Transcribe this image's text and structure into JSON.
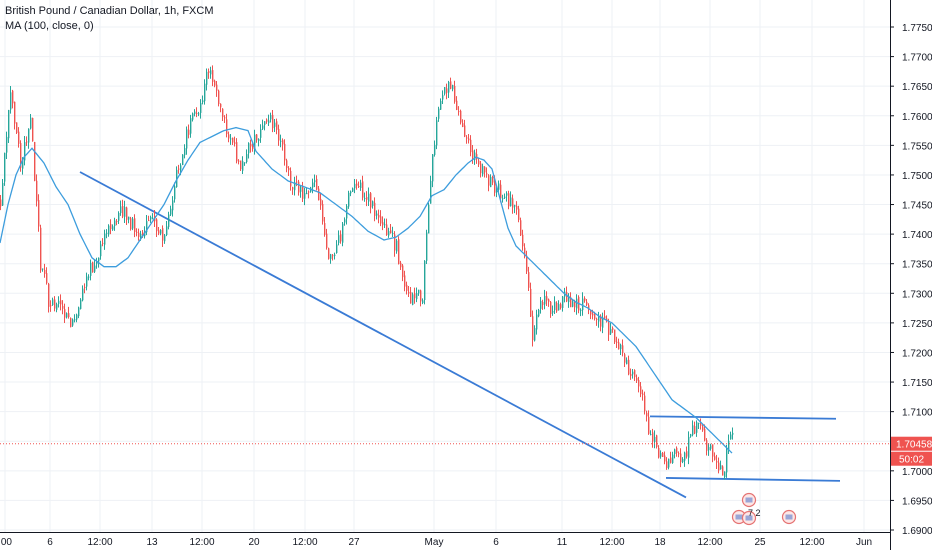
{
  "header": {
    "symbol_line": "British Pound / Canadian Dollar, 1h, FXCM",
    "indicator_line": "MA (100, close, 0)"
  },
  "price_badge": {
    "value": "1.70458",
    "countdown": "50:02"
  },
  "event_badge_text": "7 2",
  "colors": {
    "up": "#26a69a",
    "down": "#ef5350",
    "ma": "#3d9ddd",
    "trendline": "#3a7bd5",
    "price_line": "#ef5350",
    "grid": "#eef1f5"
  },
  "chart_data": {
    "type": "candlestick",
    "ylim": [
      1.688,
      1.78
    ],
    "y_ticks": [
      "1.77500",
      "1.77000",
      "1.76500",
      "1.76000",
      "1.75500",
      "1.75000",
      "1.74500",
      "1.74000",
      "1.73500",
      "1.73000",
      "1.72500",
      "1.72000",
      "1.71500",
      "1.71000",
      "1.70500",
      "1.70000",
      "1.69500",
      "1.69000"
    ],
    "x_ticks": [
      ":00",
      "6",
      "12:00",
      "13",
      "12:00",
      "20",
      "12:00",
      "27",
      "May",
      "6",
      "11",
      "12:00",
      "18",
      "12:00",
      "25",
      "12:00",
      "Jun"
    ],
    "current_price": 1.70458,
    "trendlines": [
      {
        "from_index": 40,
        "from_price": 1.7505,
        "to_index": 343,
        "to_price": 1.6955
      },
      {
        "from_index": 325,
        "from_price": 1.7092,
        "to_index": 418,
        "to_price": 1.7088
      },
      {
        "from_index": 333,
        "from_price": 1.6988,
        "to_index": 420,
        "to_price": 1.6983
      }
    ],
    "series": [
      {
        "name": "GBPCAD 1h",
        "anchors": [
          [
            0,
            1.746
          ],
          [
            5,
            1.765
          ],
          [
            10,
            1.752
          ],
          [
            15,
            1.76
          ],
          [
            20,
            1.735
          ],
          [
            24,
            1.729
          ],
          [
            30,
            1.728
          ],
          [
            36,
            1.725
          ],
          [
            42,
            1.732
          ],
          [
            48,
            1.736
          ],
          [
            55,
            1.742
          ],
          [
            62,
            1.744
          ],
          [
            68,
            1.74
          ],
          [
            75,
            1.742
          ],
          [
            82,
            1.739
          ],
          [
            88,
            1.75
          ],
          [
            94,
            1.758
          ],
          [
            100,
            1.762
          ],
          [
            104,
            1.768
          ],
          [
            108,
            1.763
          ],
          [
            114,
            1.756
          ],
          [
            120,
            1.752
          ],
          [
            127,
            1.756
          ],
          [
            134,
            1.76
          ],
          [
            140,
            1.756
          ],
          [
            145,
            1.748
          ],
          [
            152,
            1.747
          ],
          [
            158,
            1.748
          ],
          [
            164,
            1.735
          ],
          [
            170,
            1.74
          ],
          [
            176,
            1.749
          ],
          [
            182,
            1.747
          ],
          [
            188,
            1.743
          ],
          [
            194,
            1.74
          ],
          [
            198,
            1.738
          ],
          [
            202,
            1.73
          ],
          [
            207,
            1.729
          ],
          [
            211,
            1.73
          ],
          [
            214,
            1.745
          ],
          [
            218,
            1.76
          ],
          [
            222,
            1.765
          ],
          [
            226,
            1.764
          ],
          [
            230,
            1.758
          ],
          [
            235,
            1.754
          ],
          [
            240,
            1.751
          ],
          [
            246,
            1.748
          ],
          [
            252,
            1.747
          ],
          [
            258,
            1.744
          ],
          [
            262,
            1.737
          ],
          [
            266,
            1.723
          ],
          [
            270,
            1.729
          ],
          [
            276,
            1.727
          ],
          [
            282,
            1.729
          ],
          [
            287,
            1.728
          ],
          [
            292,
            1.728
          ],
          [
            297,
            1.726
          ],
          [
            302,
            1.725
          ],
          [
            307,
            1.722
          ],
          [
            312,
            1.719
          ],
          [
            317,
            1.715
          ],
          [
            321,
            1.712
          ],
          [
            325,
            1.706
          ],
          [
            329,
            1.703
          ],
          [
            333,
            1.7
          ],
          [
            337,
            1.704
          ],
          [
            341,
            1.701
          ],
          [
            345,
            1.706
          ],
          [
            349,
            1.708
          ],
          [
            353,
            1.704
          ],
          [
            357,
            1.702
          ],
          [
            361,
            1.6995
          ],
          [
            364,
            1.704
          ],
          [
            366,
            1.7075
          ]
        ]
      },
      {
        "name": "MA (100, close, 0)",
        "anchors": [
          [
            0,
            1.7385
          ],
          [
            4,
            1.745
          ],
          [
            8,
            1.75
          ],
          [
            12,
            1.753
          ],
          [
            16,
            1.7545
          ],
          [
            22,
            1.752
          ],
          [
            28,
            1.748
          ],
          [
            34,
            1.745
          ],
          [
            40,
            1.74
          ],
          [
            46,
            1.736
          ],
          [
            52,
            1.7345
          ],
          [
            58,
            1.7345
          ],
          [
            64,
            1.736
          ],
          [
            70,
            1.739
          ],
          [
            76,
            1.742
          ],
          [
            82,
            1.745
          ],
          [
            88,
            1.749
          ],
          [
            94,
            1.7525
          ],
          [
            100,
            1.7555
          ],
          [
            106,
            1.7565
          ],
          [
            112,
            1.7575
          ],
          [
            118,
            1.758
          ],
          [
            124,
            1.7575
          ],
          [
            128,
            1.754
          ],
          [
            136,
            1.751
          ],
          [
            144,
            1.749
          ],
          [
            152,
            1.748
          ],
          [
            160,
            1.747
          ],
          [
            168,
            1.745
          ],
          [
            176,
            1.743
          ],
          [
            184,
            1.7405
          ],
          [
            192,
            1.739
          ],
          [
            198,
            1.7395
          ],
          [
            204,
            1.741
          ],
          [
            210,
            1.743
          ],
          [
            216,
            1.7465
          ],
          [
            222,
            1.7475
          ],
          [
            228,
            1.75
          ],
          [
            234,
            1.752
          ],
          [
            238,
            1.753
          ],
          [
            242,
            1.7525
          ],
          [
            246,
            1.751
          ],
          [
            250,
            1.746
          ],
          [
            254,
            1.741
          ],
          [
            258,
            1.738
          ],
          [
            264,
            1.736
          ],
          [
            270,
            1.734
          ],
          [
            276,
            1.732
          ],
          [
            282,
            1.73
          ],
          [
            288,
            1.7285
          ],
          [
            294,
            1.7275
          ],
          [
            300,
            1.726
          ],
          [
            306,
            1.725
          ],
          [
            312,
            1.723
          ],
          [
            318,
            1.721
          ],
          [
            324,
            1.718
          ],
          [
            330,
            1.715
          ],
          [
            336,
            1.712
          ],
          [
            342,
            1.7105
          ],
          [
            348,
            1.709
          ],
          [
            354,
            1.707
          ],
          [
            360,
            1.705
          ],
          [
            366,
            1.703
          ]
        ]
      }
    ]
  }
}
